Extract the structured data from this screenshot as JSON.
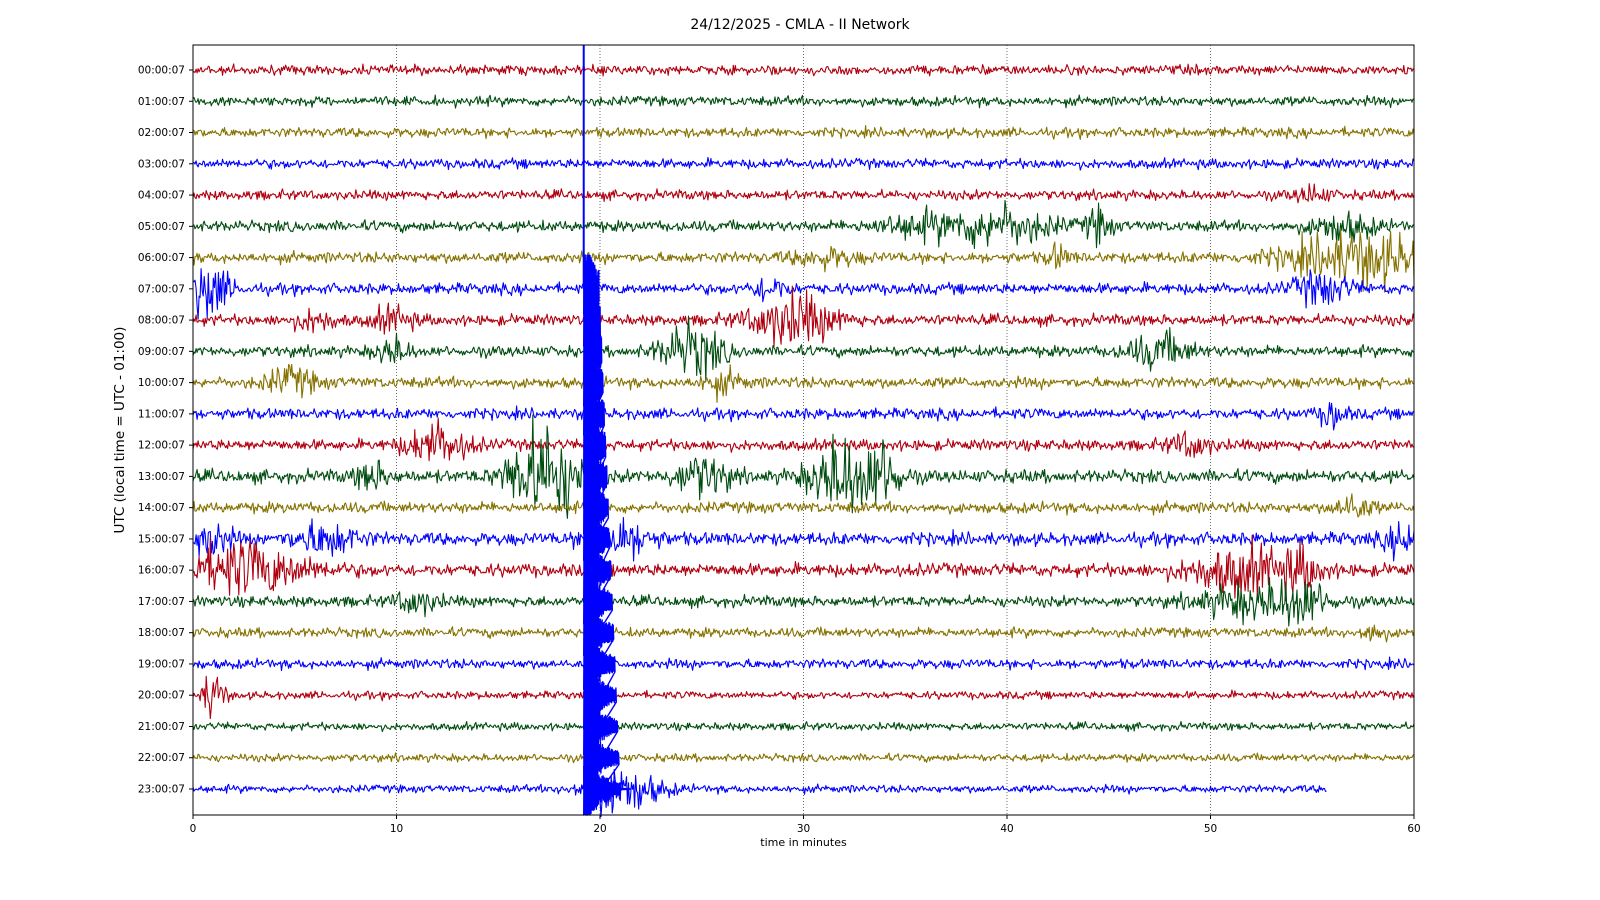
{
  "chart_data": {
    "type": "line",
    "title": "24/12/2025 - CMLA - II Network",
    "xlabel": "time in minutes",
    "ylabel": "UTC (local time = UTC - 01:00)",
    "xlim": [
      0,
      60
    ],
    "xticks": [
      "0",
      "10",
      "20",
      "30",
      "40",
      "50",
      "60"
    ],
    "grid": "vertical dotted",
    "series_colors": [
      "#b0000f",
      "#004d10",
      "#857200",
      "#0000ff"
    ],
    "rows": [
      {
        "label": "00:00:07",
        "color": "#b0000f",
        "amplitude": 0.15,
        "end_minute": 60,
        "bursts": []
      },
      {
        "label": "01:00:07",
        "color": "#004d10",
        "amplitude": 0.15,
        "end_minute": 60,
        "bursts": []
      },
      {
        "label": "02:00:07",
        "color": "#857200",
        "amplitude": 0.15,
        "end_minute": 60,
        "bursts": []
      },
      {
        "label": "03:00:07",
        "color": "#0000ff",
        "amplitude": 0.15,
        "end_minute": 60,
        "bursts": []
      },
      {
        "label": "04:00:07",
        "color": "#b0000f",
        "amplitude": 0.15,
        "end_minute": 60,
        "bursts": [
          {
            "center": 55,
            "width": 0.8,
            "amplitude": 0.25
          }
        ]
      },
      {
        "label": "05:00:07",
        "color": "#004d10",
        "amplitude": 0.17,
        "end_minute": 60,
        "bursts": [
          {
            "center": 35.5,
            "width": 2,
            "amplitude": 0.3
          },
          {
            "center": 39.5,
            "width": 2.5,
            "amplitude": 0.6
          },
          {
            "center": 44.5,
            "width": 0.6,
            "amplitude": 0.5
          },
          {
            "center": 56.5,
            "width": 1.5,
            "amplitude": 0.4
          }
        ]
      },
      {
        "label": "06:00:07",
        "color": "#857200",
        "amplitude": 0.17,
        "end_minute": 60,
        "bursts": [
          {
            "center": 31,
            "width": 1.5,
            "amplitude": 0.25
          },
          {
            "center": 42.5,
            "width": 0.5,
            "amplitude": 0.35
          },
          {
            "center": 57.5,
            "width": 3.5,
            "amplitude": 0.8
          }
        ]
      },
      {
        "label": "07:00:07",
        "color": "#0000ff",
        "amplitude": 0.17,
        "end_minute": 60,
        "bursts": [
          {
            "center": 0.7,
            "width": 1,
            "amplitude": 0.9
          },
          {
            "center": 28.3,
            "width": 0.8,
            "amplitude": 0.35
          },
          {
            "center": 55.5,
            "width": 1.3,
            "amplitude": 0.5
          }
        ]
      },
      {
        "label": "08:00:07",
        "color": "#b0000f",
        "amplitude": 0.17,
        "end_minute": 60,
        "bursts": [
          {
            "center": 6,
            "width": 1,
            "amplitude": 0.3
          },
          {
            "center": 9.8,
            "width": 1,
            "amplitude": 0.35
          },
          {
            "center": 29.5,
            "width": 2,
            "amplitude": 0.8
          }
        ]
      },
      {
        "label": "09:00:07",
        "color": "#004d10",
        "amplitude": 0.17,
        "end_minute": 60,
        "bursts": [
          {
            "center": 9.8,
            "width": 0.8,
            "amplitude": 0.4
          },
          {
            "center": 24.5,
            "width": 1.5,
            "amplitude": 0.8
          },
          {
            "center": 47.5,
            "width": 1.5,
            "amplitude": 0.5
          }
        ]
      },
      {
        "label": "10:00:07",
        "color": "#857200",
        "amplitude": 0.17,
        "end_minute": 60,
        "bursts": [
          {
            "center": 4.8,
            "width": 1.2,
            "amplitude": 0.4
          },
          {
            "center": 26,
            "width": 1,
            "amplitude": 0.3
          }
        ]
      },
      {
        "label": "11:00:07",
        "color": "#0000ff",
        "amplitude": 0.17,
        "end_minute": 60,
        "bursts": [
          {
            "center": 56,
            "width": 0.6,
            "amplitude": 0.4
          }
        ]
      },
      {
        "label": "12:00:07",
        "color": "#b0000f",
        "amplitude": 0.17,
        "end_minute": 60,
        "bursts": [
          {
            "center": 12,
            "width": 1.5,
            "amplitude": 0.6
          },
          {
            "center": 49,
            "width": 1,
            "amplitude": 0.35
          }
        ]
      },
      {
        "label": "13:00:07",
        "color": "#004d10",
        "amplitude": 0.2,
        "end_minute": 60,
        "bursts": [
          {
            "center": 16.5,
            "width": 1.2,
            "amplitude": 1.1
          },
          {
            "center": 18,
            "width": 1.2,
            "amplitude": 1.1
          },
          {
            "center": 8.8,
            "width": 0.8,
            "amplitude": 0.4
          },
          {
            "center": 25,
            "width": 1.3,
            "amplitude": 0.6
          },
          {
            "center": 32,
            "width": 1.6,
            "amplitude": 1.2
          },
          {
            "center": 34,
            "width": 0.8,
            "amplitude": 0.8
          }
        ]
      },
      {
        "label": "14:00:07",
        "color": "#857200",
        "amplitude": 0.17,
        "end_minute": 60,
        "bursts": [
          {
            "center": 57,
            "width": 0.8,
            "amplitude": 0.4
          }
        ]
      },
      {
        "label": "15:00:07",
        "color": "#0000ff",
        "amplitude": 0.2,
        "end_minute": 60,
        "bursts": [
          {
            "center": 0.8,
            "width": 1,
            "amplitude": 0.5
          },
          {
            "center": 6.5,
            "width": 1.5,
            "amplitude": 0.5
          },
          {
            "center": 21,
            "width": 1.5,
            "amplitude": 0.6
          },
          {
            "center": 59.5,
            "width": 0.8,
            "amplitude": 0.5
          }
        ]
      },
      {
        "label": "16:00:07",
        "color": "#b0000f",
        "amplitude": 0.2,
        "end_minute": 60,
        "bursts": [
          {
            "center": 2.5,
            "width": 3,
            "amplitude": 0.8
          },
          {
            "center": 51.5,
            "width": 2.5,
            "amplitude": 0.7
          },
          {
            "center": 54.5,
            "width": 1,
            "amplitude": 0.5
          }
        ]
      },
      {
        "label": "17:00:07",
        "color": "#004d10",
        "amplitude": 0.17,
        "end_minute": 60,
        "bursts": [
          {
            "center": 11,
            "width": 1,
            "amplitude": 0.35
          },
          {
            "center": 52,
            "width": 2.5,
            "amplitude": 0.5
          },
          {
            "center": 54.5,
            "width": 1.2,
            "amplitude": 0.6
          }
        ]
      },
      {
        "label": "18:00:07",
        "color": "#857200",
        "amplitude": 0.15,
        "end_minute": 60,
        "bursts": [
          {
            "center": 58,
            "width": 0.6,
            "amplitude": 0.3
          }
        ]
      },
      {
        "label": "19:00:07",
        "color": "#0000ff",
        "amplitude": 0.15,
        "end_minute": 60,
        "bursts": []
      },
      {
        "label": "20:00:07",
        "color": "#b0000f",
        "amplitude": 0.12,
        "end_minute": 60,
        "bursts": [
          {
            "center": 1,
            "width": 0.5,
            "amplitude": 0.8
          }
        ]
      },
      {
        "label": "21:00:07",
        "color": "#004d10",
        "amplitude": 0.12,
        "end_minute": 60,
        "bursts": []
      },
      {
        "label": "22:00:07",
        "color": "#857200",
        "amplitude": 0.12,
        "end_minute": 60,
        "bursts": []
      },
      {
        "label": "23:00:07",
        "color": "#0000ff",
        "amplitude": 0.12,
        "end_minute": 55.7,
        "bursts": [
          {
            "center": 20.5,
            "width": 1.5,
            "amplitude": 0.6
          },
          {
            "center": 22,
            "width": 1.5,
            "amplitude": 0.3
          }
        ]
      }
    ],
    "main_event": {
      "color": "#0000ff",
      "onset_minute": 19.2,
      "peak_minute": 19.5,
      "decay_end_minute": 21,
      "from_row": "07:00:07",
      "to_row": "23:00:07"
    }
  }
}
